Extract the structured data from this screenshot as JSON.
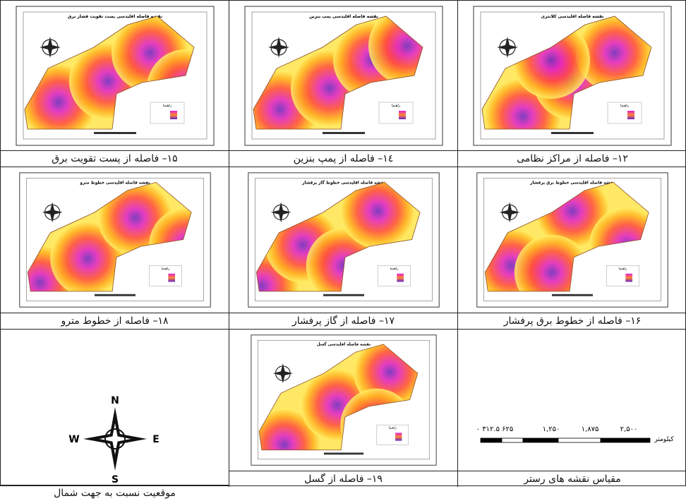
{
  "panels": [
    {
      "title": "نقشه فاصله اقلیدسی پست تقویت فشار برق",
      "legend_title": "راهنما",
      "caption": "۱۵– فاصله از پست تقویت برق"
    },
    {
      "title": "نقشه فاصله اقلیدسی پمپ بنزین",
      "legend_title": "راهنما",
      "caption": "۱٤– فاصله از پمپ بنزین"
    },
    {
      "title": "نقشه فاصله اقلیدسی کلانتری",
      "legend_title": "راهنما",
      "caption": "۱۲– فاصله از مراکز نظامی"
    },
    {
      "title": "نقشه فاصله اقلیدسی خطوط مترو",
      "legend_title": "راهنما",
      "caption": "۱۸– فاصله از خطوط مترو"
    },
    {
      "title": "نقشه فاصله اقلیدسی خطوط گاز پرفشار",
      "legend_title": "راهنما",
      "caption": "۱۷– فاصله از گاز پرفشار"
    },
    {
      "title": "نقشه فاصله اقلیدسی خطوط برق پرفشار",
      "legend_title": "راهنما",
      "caption": "۱۶– فاصله از خطوط برق پرفشار"
    },
    {
      "title": "نقشه فاصله اقلیدسی گسل",
      "legend_title": "راهنما",
      "caption": "۱۹– فاصله از گسل"
    }
  ],
  "compass": {
    "north": "N",
    "south": "S",
    "east": "E",
    "west": "W",
    "caption": "موقعیت نسبت به جهت شمال"
  },
  "scale": {
    "labels": [
      "۰ ۳۱۲.۵ ۶۲۵",
      "۱,۲۵۰",
      "۱,۸۷۵",
      "۲,۵۰۰"
    ],
    "unit": "کیلومتر",
    "caption": "مقیاس نقشه های رستر"
  }
}
